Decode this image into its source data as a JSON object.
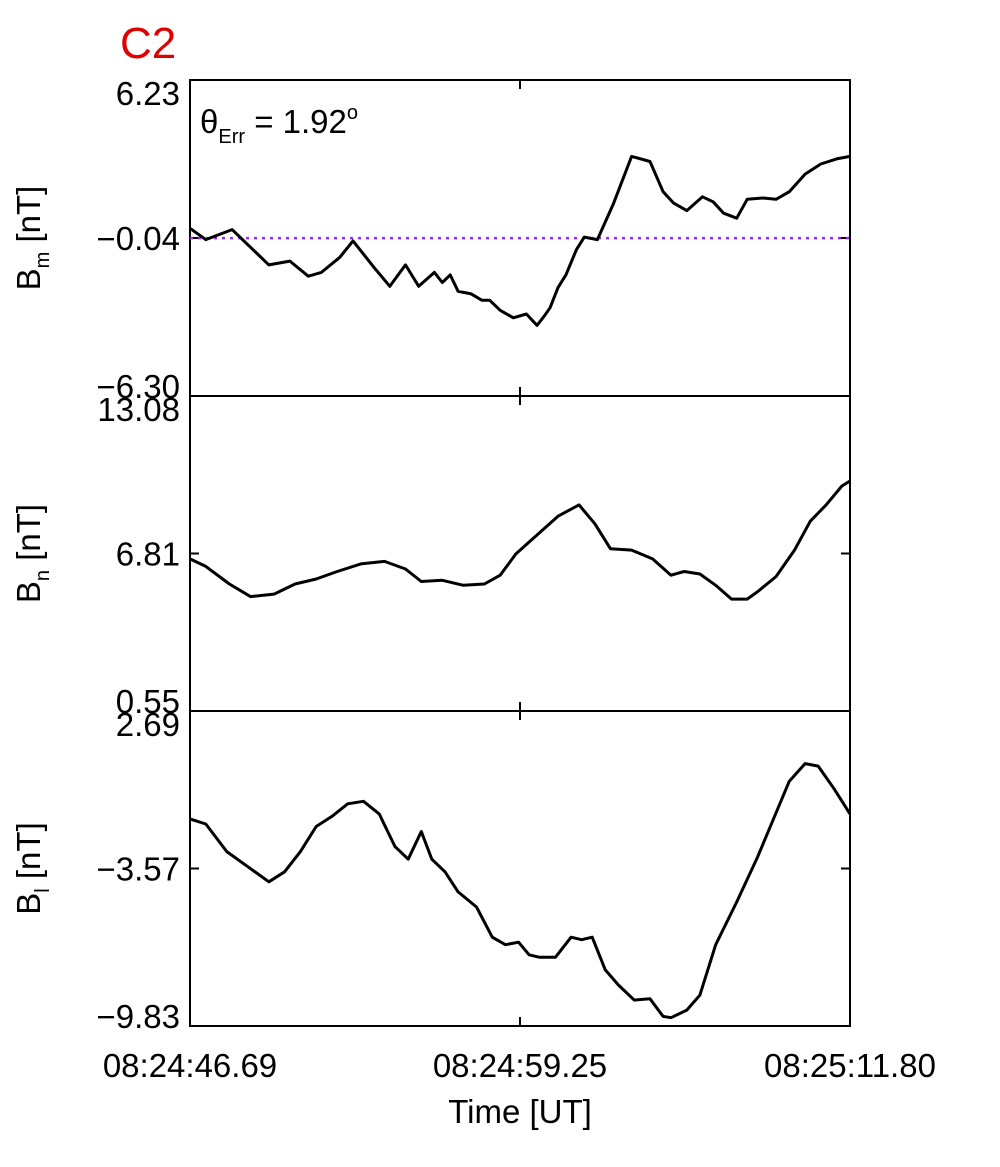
{
  "panel_label": "C2",
  "annotation": {
    "theta": "θ",
    "sub": "Err",
    "rest": " =  1.92",
    "sup": "o"
  },
  "colors": {
    "label": "#e00000",
    "trace": "#000000",
    "reference": "#9b30d9"
  },
  "chart_data": {
    "type": "line",
    "xlabel": "Time [UT]",
    "x_ticks": [
      "08:24:46.69",
      "08:24:59.25",
      "08:25:11.80"
    ],
    "x_range": [
      0,
      25.11
    ],
    "x_unit": "seconds after 08:24:46.69",
    "panels": [
      {
        "ylabel": {
          "base": "B",
          "sub": "m",
          "unit": " [nT]"
        },
        "ylim": [
          -6.3,
          6.23
        ],
        "y_ticks": [
          "6.23",
          "-0.04",
          "-6.30"
        ],
        "reference_line": {
          "y": -0.04,
          "style": "dotted"
        },
        "x": [
          0,
          0.6,
          1.6,
          2.2,
          3.0,
          3.8,
          4.5,
          5.0,
          5.7,
          6.2,
          7.0,
          7.6,
          8.2,
          8.7,
          9.3,
          9.6,
          9.9,
          10.2,
          10.7,
          11.1,
          11.4,
          11.8,
          12.3,
          12.8,
          13.2,
          13.5,
          13.7,
          14.0,
          14.3,
          14.7,
          15.0,
          15.5,
          16.1,
          16.8,
          17.5,
          18.0,
          18.4,
          18.9,
          19.5,
          19.9,
          20.3,
          20.8,
          21.2,
          21.8,
          22.3,
          22.8,
          23.4,
          24.0,
          24.6,
          25.11
        ],
        "y": [
          0.35,
          -0.1,
          0.3,
          -0.3,
          -1.1,
          -0.95,
          -1.55,
          -1.4,
          -0.8,
          -0.15,
          -1.2,
          -1.95,
          -1.1,
          -1.95,
          -1.4,
          -1.8,
          -1.5,
          -2.15,
          -2.25,
          -2.5,
          -2.5,
          -2.9,
          -3.2,
          -3.05,
          -3.5,
          -3.1,
          -2.8,
          -2.0,
          -1.5,
          -0.5,
          0.0,
          -0.1,
          1.3,
          3.2,
          3.0,
          1.8,
          1.35,
          1.05,
          1.6,
          1.4,
          0.95,
          0.75,
          1.5,
          1.55,
          1.5,
          1.8,
          2.5,
          2.9,
          3.1,
          3.2
        ]
      },
      {
        "ylabel": {
          "base": "B",
          "sub": "n",
          "unit": " [nT]"
        },
        "ylim": [
          0.55,
          13.08
        ],
        "y_ticks": [
          "13.08",
          "6.81",
          "0.55"
        ],
        "x": [
          0,
          0.6,
          1.5,
          2.3,
          3.2,
          4.0,
          4.8,
          5.6,
          6.5,
          7.4,
          8.2,
          8.8,
          9.6,
          10.4,
          11.2,
          11.8,
          12.4,
          13.2,
          14.0,
          14.8,
          15.4,
          16.0,
          16.8,
          17.6,
          18.3,
          18.8,
          19.4,
          20.0,
          20.6,
          21.2,
          21.6,
          22.3,
          23.0,
          23.6,
          24.2,
          24.8,
          25.11
        ],
        "y": [
          6.6,
          6.3,
          5.6,
          5.1,
          5.2,
          5.6,
          5.8,
          6.1,
          6.4,
          6.5,
          6.2,
          5.7,
          5.75,
          5.55,
          5.6,
          5.95,
          6.8,
          7.55,
          8.3,
          8.75,
          8.0,
          7.0,
          6.95,
          6.6,
          5.95,
          6.1,
          6.0,
          5.55,
          5.0,
          5.0,
          5.3,
          5.9,
          6.95,
          8.1,
          8.75,
          9.5,
          9.7
        ]
      },
      {
        "ylabel": {
          "base": "B",
          "sub": "l",
          "unit": " [nT]"
        },
        "ylim": [
          -9.83,
          2.69
        ],
        "y_ticks": [
          "2.69",
          "-3.57",
          "-9.83"
        ],
        "x": [
          0,
          0.6,
          1.4,
          2.2,
          3.0,
          3.6,
          4.2,
          4.8,
          5.4,
          6.0,
          6.6,
          7.2,
          7.8,
          8.3,
          8.8,
          9.2,
          9.7,
          10.2,
          10.9,
          11.5,
          12.0,
          12.5,
          12.9,
          13.3,
          13.9,
          14.5,
          14.9,
          15.3,
          15.8,
          16.3,
          16.9,
          17.5,
          18.0,
          18.3,
          18.9,
          19.4,
          20.0,
          20.8,
          21.6,
          22.2,
          22.8,
          23.4,
          23.9,
          24.5,
          25.11
        ],
        "y": [
          -1.6,
          -1.8,
          -2.9,
          -3.5,
          -4.1,
          -3.7,
          -2.9,
          -1.9,
          -1.5,
          -1.0,
          -0.9,
          -1.4,
          -2.7,
          -3.2,
          -2.1,
          -3.2,
          -3.7,
          -4.5,
          -5.1,
          -6.3,
          -6.6,
          -6.5,
          -7.0,
          -7.1,
          -7.1,
          -6.3,
          -6.4,
          -6.3,
          -7.6,
          -8.2,
          -8.8,
          -8.75,
          -9.45,
          -9.5,
          -9.2,
          -8.6,
          -6.6,
          -4.9,
          -3.1,
          -1.6,
          -0.1,
          0.6,
          0.5,
          -0.4,
          -1.4
        ]
      }
    ]
  }
}
